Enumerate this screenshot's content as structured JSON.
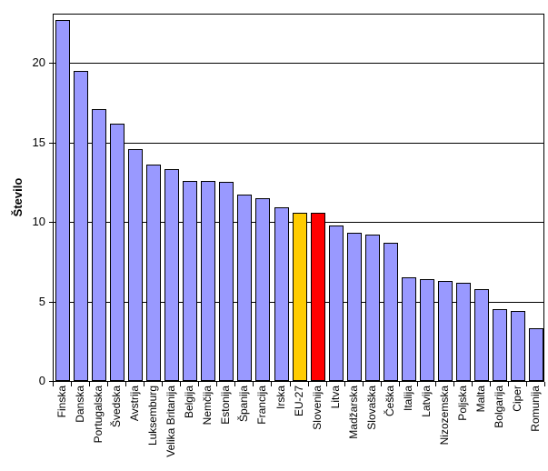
{
  "chart_data": {
    "type": "bar",
    "title": "",
    "xlabel": "",
    "ylabel": "Število",
    "categories": [
      "Finska",
      "Danska",
      "Portugalska",
      "Švedska",
      "Avstrija",
      "Luksemburg",
      "Velika Britanija",
      "Belgija",
      "Nemčija",
      "Estonija",
      "Španija",
      "Francija",
      "Irska",
      "EU-27",
      "Slovenija",
      "Litva",
      "Madžarska",
      "Slovaška",
      "Češka",
      "Italija",
      "Latvija",
      "Nizozemska",
      "Poljska",
      "Malta",
      "Bolgarija",
      "Ciper",
      "Romunija"
    ],
    "values": [
      22.7,
      19.5,
      17.1,
      16.2,
      14.6,
      13.6,
      13.3,
      12.6,
      12.6,
      12.5,
      11.7,
      11.5,
      10.9,
      10.6,
      10.6,
      9.8,
      9.3,
      9.2,
      8.7,
      6.5,
      6.4,
      6.3,
      6.2,
      5.8,
      4.5,
      4.4,
      3.3
    ],
    "yticks": [
      0,
      5,
      10,
      15,
      20
    ],
    "ylim": [
      0,
      23.1
    ],
    "grid": true,
    "legend": false,
    "default_bar_color": "#9999FF",
    "highlight_bars": {
      "EU-27": "#FFCC00",
      "Slovenija": "#FF0000"
    },
    "bar_border_color": "#000000",
    "gridline_color": "#000000",
    "background_color": "#FFFFFF"
  }
}
